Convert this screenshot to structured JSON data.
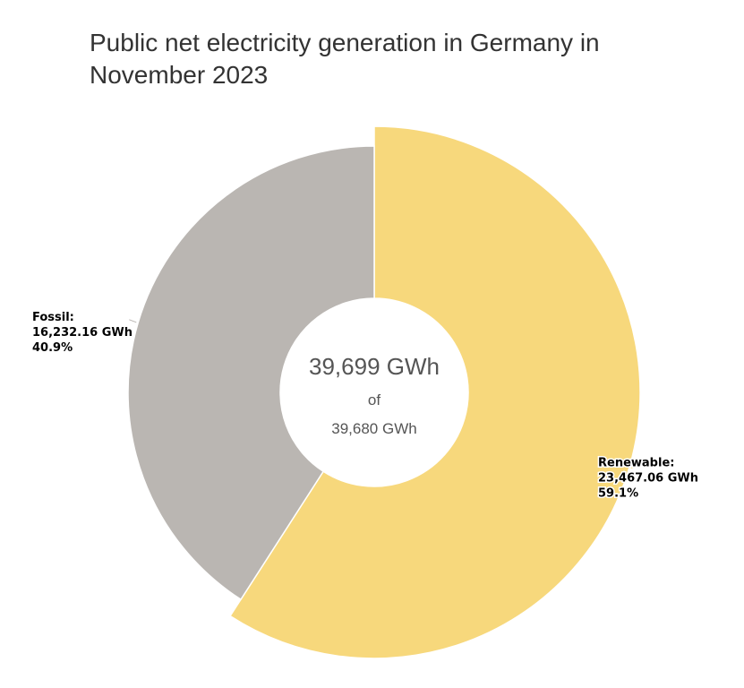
{
  "chart_data": {
    "type": "pie",
    "variant": "donut",
    "title": "Public net electricity generation in Germany in November 2023",
    "center_label": {
      "total": "39,699 GWh",
      "of": "of",
      "reference": "39,680 GWh"
    },
    "slices": [
      {
        "name": "Renewable",
        "value": 23467.06,
        "value_label": "23,467.06 GWh",
        "percent_label": "59.1%",
        "color": "#f7d87c",
        "highlighted": true
      },
      {
        "name": "Fossil",
        "value": 16232.16,
        "value_label": "16,232.16 GWh",
        "percent_label": "40.9%",
        "color": "#bab6b2",
        "highlighted": false
      }
    ],
    "legend": "none"
  }
}
